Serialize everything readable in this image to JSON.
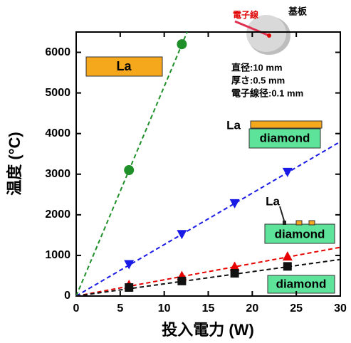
{
  "chart_data": {
    "type": "scatter",
    "xlabel": "投入電力 (W)",
    "ylabel": "温度 (°C)",
    "xlim": [
      0,
      30
    ],
    "ylim": [
      0,
      6500
    ],
    "xticks": [
      0,
      5,
      10,
      15,
      20,
      25,
      30
    ],
    "yticks": [
      0,
      1000,
      2000,
      3000,
      4000,
      5000,
      6000
    ],
    "grid": false,
    "series": [
      {
        "color": "#1f8f2a",
        "marker": "circle",
        "x": [
          6,
          12
        ],
        "values": [
          3100,
          6200
        ],
        "fit": {
          "x": [
            0,
            12.6
          ],
          "y": [
            0,
            6500
          ]
        }
      },
      {
        "color": "#1a1ae6",
        "marker": "triangle-down",
        "x": [
          6,
          12,
          18,
          24
        ],
        "values": [
          780,
          1520,
          2280,
          3050
        ],
        "fit": {
          "x": [
            0,
            30
          ],
          "y": [
            0,
            3800
          ]
        }
      },
      {
        "color": "#e60000",
        "marker": "triangle-up",
        "x": [
          6,
          12,
          18,
          24
        ],
        "values": [
          280,
          500,
          730,
          980
        ],
        "fit": {
          "x": [
            0,
            30
          ],
          "y": [
            0,
            1200
          ]
        }
      },
      {
        "color": "#111111",
        "marker": "square",
        "x": [
          6,
          12,
          18,
          24
        ],
        "values": [
          210,
          370,
          560,
          730
        ],
        "fit": {
          "x": [
            0,
            30
          ],
          "y": [
            0,
            900
          ]
        }
      }
    ],
    "annotations": [
      "La",
      "電子線",
      "基板",
      "直径:10 mm",
      "厚さ:0.5 mm",
      "電子線径:0.1 mm",
      "La",
      "diamond",
      "La",
      "diamond",
      "diamond"
    ]
  }
}
